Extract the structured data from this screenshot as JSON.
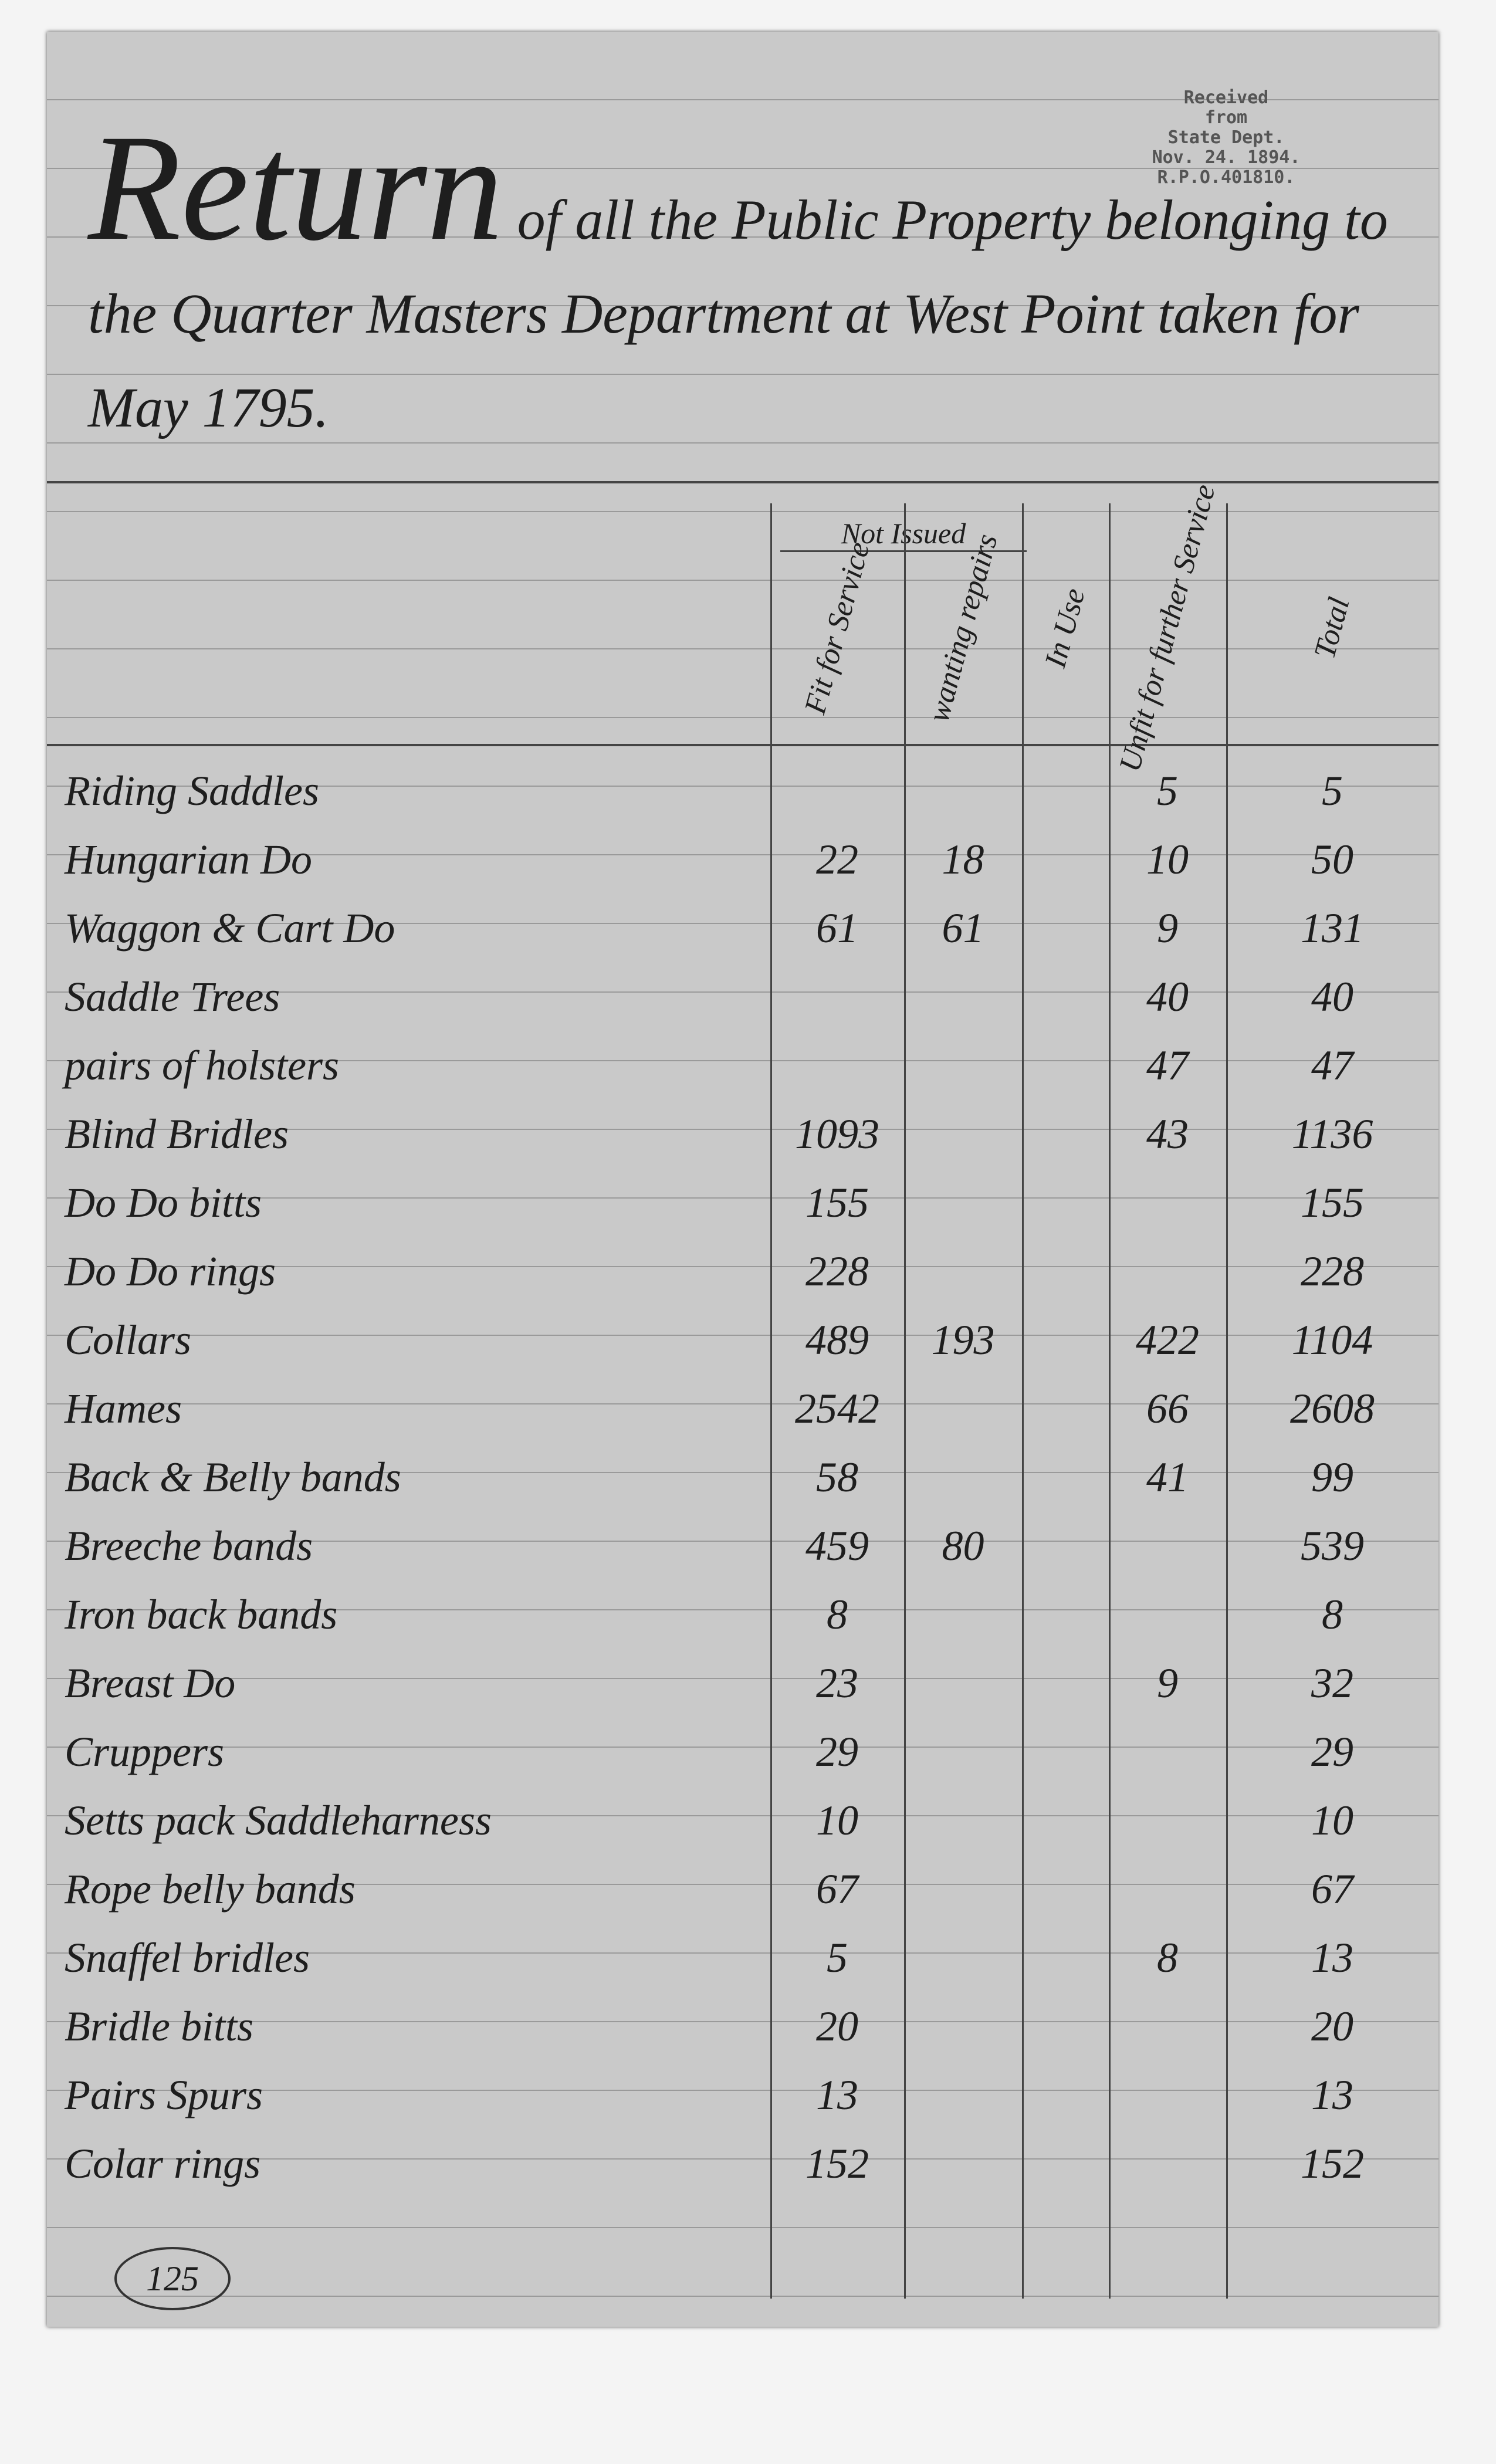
{
  "stamp": [
    "Received",
    "from",
    "State Dept.",
    "Nov. 24. 1894.",
    "R.P.O.401810."
  ],
  "header": {
    "title": "Return",
    "title_rest": "of all the Public Property belonging to the Quarter Masters Department at West Point taken for May 1795."
  },
  "table": {
    "group_header": "Not Issued",
    "columns": [
      "Fit for Service",
      "wanting repairs",
      "In Use",
      "Unfit for further Service",
      "Total"
    ],
    "rows": [
      [
        "Riding Saddles",
        null,
        null,
        null,
        "5",
        "5"
      ],
      [
        "Hungarian Do",
        "22",
        "18",
        null,
        "10",
        "50"
      ],
      [
        "Waggon & Cart Do",
        "61",
        "61",
        null,
        "9",
        "131"
      ],
      [
        "Saddle Trees",
        null,
        null,
        null,
        "40",
        "40"
      ],
      [
        "pairs of holsters",
        null,
        null,
        null,
        "47",
        "47"
      ],
      [
        "Blind Bridles",
        "1093",
        null,
        null,
        "43",
        "1136"
      ],
      [
        "Do Do bitts",
        "155",
        null,
        null,
        null,
        "155"
      ],
      [
        "Do Do rings",
        "228",
        null,
        null,
        null,
        "228"
      ],
      [
        "Collars",
        "489",
        "193",
        null,
        "422",
        "1104"
      ],
      [
        "Hames",
        "2542",
        null,
        null,
        "66",
        "2608"
      ],
      [
        "Back & Belly bands",
        "58",
        null,
        null,
        "41",
        "99"
      ],
      [
        "Breeche bands",
        "459",
        "80",
        null,
        null,
        "539"
      ],
      [
        "Iron back bands",
        "8",
        null,
        null,
        null,
        "8"
      ],
      [
        "Breast Do",
        "23",
        null,
        null,
        "9",
        "32"
      ],
      [
        "Cruppers",
        "29",
        null,
        null,
        null,
        "29"
      ],
      [
        "Setts pack Saddleharness",
        "10",
        null,
        null,
        null,
        "10"
      ],
      [
        "Rope belly bands",
        "67",
        null,
        null,
        null,
        "67"
      ],
      [
        "Snaffel bridles",
        "5",
        null,
        null,
        "8",
        "13"
      ],
      [
        "Bridle bitts",
        "20",
        null,
        null,
        null,
        "20"
      ],
      [
        "Pairs Spurs",
        "13",
        null,
        null,
        null,
        "13"
      ],
      [
        "Colar rings",
        "152",
        null,
        null,
        null,
        "152"
      ]
    ]
  },
  "page_number": "125"
}
